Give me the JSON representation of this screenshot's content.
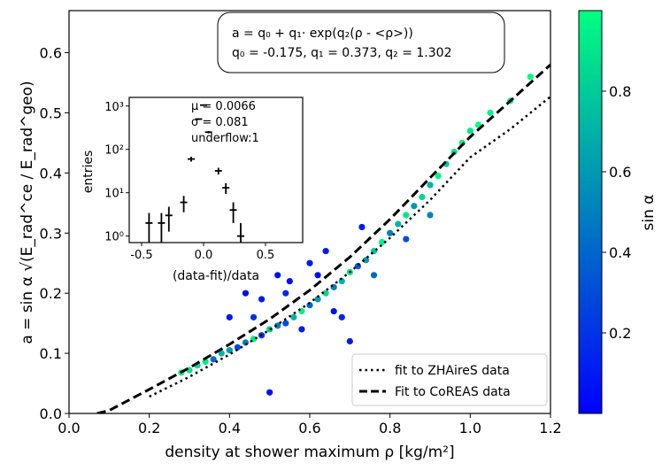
{
  "chart_data": [
    {
      "type": "scatter",
      "xlabel": "density at shower maximum ρ [kg/m²]",
      "ylabel": "a = sin α √(E_rad^ce / E_rad^geo)",
      "xlim": [
        0.0,
        1.2
      ],
      "ylim": [
        0.0,
        0.67
      ],
      "xticks": [
        "0.0",
        "0.2",
        "0.4",
        "0.6",
        "0.8",
        "1.0",
        "1.2"
      ],
      "yticks": [
        "0.0",
        "0.1",
        "0.2",
        "0.3",
        "0.4",
        "0.5",
        "0.6"
      ],
      "formula": {
        "line1": "a = q₀ + q₁· exp(q₂(ρ - <ρ>))",
        "line2": "q₀ = -0.175, q₁ = 0.373, q₂ = 1.302"
      },
      "colorbar": {
        "label": "sin α",
        "ticks": [
          "0.2",
          "0.4",
          "0.6",
          "0.8"
        ],
        "range": [
          0.0,
          1.0
        ],
        "low_color": "#0000ff",
        "high_color": "#00ff80"
      },
      "legend": {
        "position": "lower right",
        "entries": [
          {
            "label": "fit to ZHAireS data",
            "style": "dotted"
          },
          {
            "label": "Fit to CoREAS data",
            "style": "dashed"
          }
        ]
      },
      "series": [
        {
          "label": "fit to ZHAireS data",
          "style": "dotted",
          "x": [
            0.2,
            0.3,
            0.4,
            0.5,
            0.6,
            0.7,
            0.8,
            0.9,
            1.0,
            1.1,
            1.2
          ],
          "y": [
            0.028,
            0.061,
            0.098,
            0.139,
            0.184,
            0.235,
            0.292,
            0.355,
            0.426,
            0.473,
            0.527
          ]
        },
        {
          "label": "Fit to CoREAS data",
          "style": "dashed",
          "x": [
            0.07,
            0.1,
            0.2,
            0.3,
            0.4,
            0.5,
            0.6,
            0.7,
            0.8,
            0.9,
            1.0,
            1.1,
            1.2
          ],
          "y": [
            0.0,
            0.005,
            0.04,
            0.076,
            0.115,
            0.157,
            0.205,
            0.26,
            0.323,
            0.392,
            0.46,
            0.52,
            0.58
          ]
        }
      ],
      "scatter_points": [
        [
          0.28,
          0.068,
          0.95
        ],
        [
          0.3,
          0.072,
          0.9
        ],
        [
          0.32,
          0.08,
          0.85
        ],
        [
          0.34,
          0.086,
          0.92
        ],
        [
          0.36,
          0.09,
          0.4
        ],
        [
          0.38,
          0.1,
          0.7
        ],
        [
          0.4,
          0.105,
          0.6
        ],
        [
          0.42,
          0.11,
          0.3
        ],
        [
          0.44,
          0.118,
          0.5
        ],
        [
          0.46,
          0.124,
          0.9
        ],
        [
          0.48,
          0.13,
          0.2
        ],
        [
          0.5,
          0.14,
          0.8
        ],
        [
          0.52,
          0.146,
          0.5
        ],
        [
          0.54,
          0.15,
          0.3
        ],
        [
          0.56,
          0.16,
          0.7
        ],
        [
          0.58,
          0.17,
          0.95
        ],
        [
          0.6,
          0.18,
          0.4
        ],
        [
          0.62,
          0.19,
          0.6
        ],
        [
          0.64,
          0.2,
          0.85
        ],
        [
          0.66,
          0.21,
          0.5
        ],
        [
          0.68,
          0.22,
          0.7
        ],
        [
          0.7,
          0.235,
          0.9
        ],
        [
          0.72,
          0.245,
          0.35
        ],
        [
          0.74,
          0.255,
          0.6
        ],
        [
          0.76,
          0.27,
          0.8
        ],
        [
          0.78,
          0.285,
          0.95
        ],
        [
          0.8,
          0.3,
          0.5
        ],
        [
          0.82,
          0.315,
          0.7
        ],
        [
          0.84,
          0.33,
          0.9
        ],
        [
          0.86,
          0.345,
          0.6
        ],
        [
          0.88,
          0.36,
          0.85
        ],
        [
          0.9,
          0.38,
          0.7
        ],
        [
          0.92,
          0.395,
          0.95
        ],
        [
          0.94,
          0.415,
          0.8
        ],
        [
          0.96,
          0.435,
          0.9
        ],
        [
          0.98,
          0.45,
          0.95
        ],
        [
          1.0,
          0.47,
          0.9
        ],
        [
          1.02,
          0.48,
          1.0
        ],
        [
          1.05,
          0.5,
          0.95
        ],
        [
          1.1,
          0.52,
          0.98
        ],
        [
          1.15,
          0.56,
          0.99
        ],
        [
          0.44,
          0.2,
          0.05
        ],
        [
          0.48,
          0.19,
          0.1
        ],
        [
          0.52,
          0.23,
          0.05
        ],
        [
          0.55,
          0.22,
          0.05
        ],
        [
          0.6,
          0.25,
          0.1
        ],
        [
          0.62,
          0.23,
          0.05
        ],
        [
          0.66,
          0.17,
          0.05
        ],
        [
          0.58,
          0.14,
          0.1
        ],
        [
          0.5,
          0.035,
          0.05
        ],
        [
          0.73,
          0.31,
          0.1
        ],
        [
          0.7,
          0.12,
          0.1
        ],
        [
          0.4,
          0.16,
          0.1
        ],
        [
          0.84,
          0.29,
          0.3
        ],
        [
          0.9,
          0.33,
          0.5
        ],
        [
          0.64,
          0.27,
          0.1
        ],
        [
          0.68,
          0.16,
          0.15
        ],
        [
          0.46,
          0.16,
          0.2
        ],
        [
          0.54,
          0.2,
          0.15
        ],
        [
          0.76,
          0.23,
          0.4
        ]
      ]
    },
    {
      "type": "scatter",
      "xlabel": "(data-fit)/data",
      "ylabel": "entries",
      "yscale": "log",
      "xlim": [
        -0.6,
        0.8
      ],
      "xticks": [
        "-0.5",
        "0.0",
        "0.5"
      ],
      "yticks": [
        "10⁰",
        "10¹",
        "10²",
        "10³"
      ],
      "stats": {
        "mu": "μ = 0.0066",
        "sigma": "σ = 0.081",
        "underflow": "underflow:1"
      },
      "points": [
        {
          "x": -0.44,
          "y": 2
        },
        {
          "x": -0.34,
          "y": 2
        },
        {
          "x": -0.28,
          "y": 3
        },
        {
          "x": -0.16,
          "y": 6
        },
        {
          "x": -0.1,
          "y": 60
        },
        {
          "x": -0.04,
          "y": 500
        },
        {
          "x": 0.0,
          "y": 1050
        },
        {
          "x": 0.04,
          "y": 250
        },
        {
          "x": 0.12,
          "y": 32
        },
        {
          "x": 0.18,
          "y": 13
        },
        {
          "x": 0.24,
          "y": 4
        },
        {
          "x": 0.3,
          "y": 1
        }
      ]
    }
  ]
}
